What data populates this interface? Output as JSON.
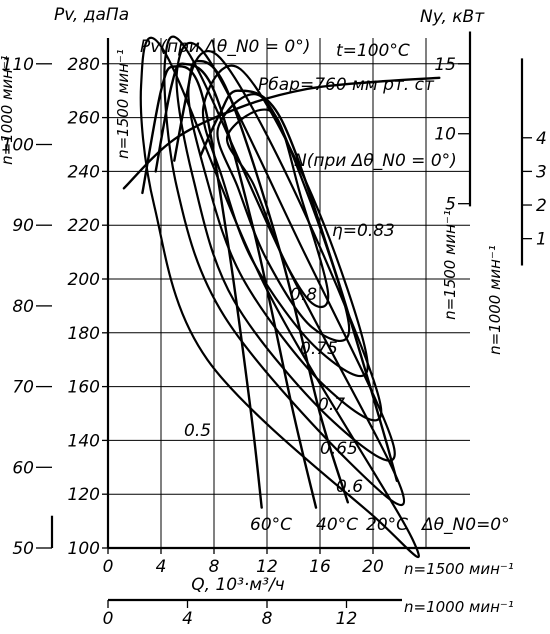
{
  "chart_data": {
    "type": "line",
    "x_axis_1500": {
      "label": "Q, 10³·м³/ч",
      "speed_label": "n=1500 мин⁻¹",
      "ticks": [
        "0",
        "4",
        "8",
        "12",
        "16",
        "20"
      ],
      "range": [
        0,
        26
      ]
    },
    "x_axis_1000": {
      "speed_label": "n=1000 мин⁻¹",
      "ticks": [
        "0",
        "4",
        "8",
        "12"
      ]
    },
    "y_left_1500": {
      "label": "Pv, даПа",
      "speed_label": "n=1500 мин⁻¹",
      "ticks": [
        "100",
        "120",
        "140",
        "160",
        "180",
        "200",
        "220",
        "240",
        "260",
        "280"
      ],
      "range": [
        100,
        290
      ]
    },
    "y_left_1000": {
      "speed_label": "n=1000 мин⁻¹",
      "ticks": [
        "50",
        "60",
        "70",
        "80",
        "90",
        "100",
        "110"
      ]
    },
    "y_right_1500": {
      "label": "Ny, кВт",
      "speed_label": "n=1500 мин⁻¹",
      "ticks": [
        "5",
        "10",
        "15"
      ]
    },
    "y_right_1000": {
      "speed_label": "n=1000 мин⁻¹",
      "ticks": [
        "1",
        "2",
        "3",
        "4"
      ]
    },
    "conditions": [
      "t=100°C",
      "Pбар=760 мм рт. ст"
    ],
    "curve_labels": {
      "pressure": "Pv(при Δθ_N0 = 0°)",
      "power": "N(при Δθ_N0 = 0°)"
    },
    "efficiency_labels": [
      "η=0.83",
      "0.8",
      "0.75",
      "0.7",
      "0.65",
      "0.6",
      "0.5"
    ],
    "series": [
      {
        "name": "60°C",
        "x": [
          2.6,
          4,
          5,
          7,
          9,
          10.8,
          11.6
        ],
        "y": [
          232,
          270,
          279,
          270,
          215,
          150,
          115
        ]
      },
      {
        "name": "40°C",
        "x": [
          3.6,
          4.8,
          5.7,
          8,
          11,
          14,
          15.7
        ],
        "y": [
          240,
          272,
          280,
          270,
          218,
          150,
          115
        ]
      },
      {
        "name": "20°C",
        "x": [
          5,
          6,
          6.7,
          9,
          13,
          16,
          18.1
        ],
        "y": [
          244,
          270,
          281,
          270,
          210,
          150,
          117
        ]
      },
      {
        "name": "Δθ_N0=0°",
        "x": [
          7,
          8.4,
          9.8,
          13,
          17,
          20.5,
          21.8
        ],
        "y": [
          246,
          261,
          270,
          260,
          205,
          148,
          125
        ]
      },
      {
        "name": "N(при Δθ_N0 = 0°)",
        "x": [
          1.2,
          5,
          10,
          15,
          20,
          25
        ],
        "y": [
          6.1,
          9.6,
          11.9,
          13.2,
          13.7,
          14
        ]
      }
    ],
    "efficiency_loops": [
      {
        "label": "0.83",
        "x": [
          9,
          12.4,
          14.6,
          16.6,
          15.4,
          13.2,
          11
        ],
        "y": [
          253,
          262,
          230,
          195,
          191,
          208,
          235
        ]
      },
      {
        "label": "0.8",
        "x": [
          8.3,
          11.5,
          14.8,
          18.2,
          15.4,
          12,
          9.8
        ],
        "y": [
          256,
          268,
          235,
          182,
          182,
          207,
          234
        ]
      },
      {
        "label": "0.75",
        "x": [
          7.2,
          10,
          15.4,
          19.6,
          15.8,
          11,
          8.6
        ],
        "y": [
          264,
          278,
          231,
          168,
          174,
          206,
          238
        ]
      },
      {
        "label": "0.7",
        "x": [
          6.1,
          8.5,
          14.8,
          20.6,
          16.4,
          10.2,
          7.3
        ],
        "y": [
          272,
          282,
          225,
          152,
          160,
          200,
          240
        ]
      },
      {
        "label": "0.65",
        "x": [
          5.2,
          7.4,
          14.4,
          21.6,
          17,
          9.5,
          6.4
        ],
        "y": [
          277,
          283,
          214,
          137,
          147,
          192,
          238
        ]
      },
      {
        "label": "0.6",
        "x": [
          4.3,
          6.2,
          13.5,
          22.2,
          18.2,
          8.8,
          5.2
        ],
        "y": [
          281,
          283,
          205,
          121,
          132,
          186,
          234
        ]
      },
      {
        "label": "0.5",
        "x": [
          2.5,
          4.2,
          12,
          23,
          20,
          7.5,
          3.5
        ],
        "y": [
          272,
          285,
          196,
          103,
          112,
          170,
          227
        ]
      }
    ],
    "grid": true
  }
}
